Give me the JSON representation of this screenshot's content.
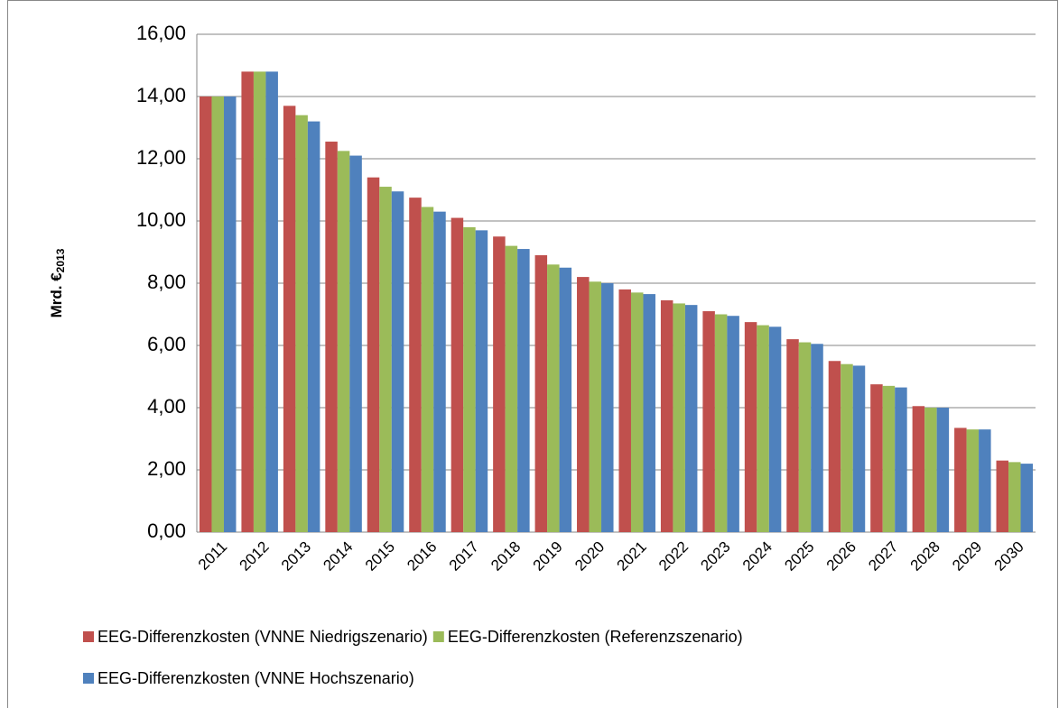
{
  "chart_data": {
    "type": "bar",
    "y_label": "Mrd. €",
    "y_label_sub": "2013",
    "categories": [
      "2011",
      "2012",
      "2013",
      "2014",
      "2015",
      "2016",
      "2017",
      "2018",
      "2019",
      "2020",
      "2021",
      "2022",
      "2023",
      "2024",
      "2025",
      "2026",
      "2027",
      "2028",
      "2029",
      "2030"
    ],
    "series": [
      {
        "name": "EEG-Differenzkosten (VNNE Niedrigszenario)",
        "color": "#c0504d",
        "values": [
          14.0,
          14.8,
          13.7,
          12.55,
          11.4,
          10.75,
          10.1,
          9.5,
          8.9,
          8.2,
          7.8,
          7.45,
          7.1,
          6.75,
          6.2,
          5.5,
          4.75,
          4.05,
          3.35,
          2.3
        ]
      },
      {
        "name": "EEG-Differenzkosten (Referenzszenario)",
        "color": "#9bbb59",
        "values": [
          14.0,
          14.8,
          13.4,
          12.25,
          11.1,
          10.45,
          9.8,
          9.2,
          8.6,
          8.05,
          7.7,
          7.35,
          7.0,
          6.65,
          6.1,
          5.4,
          4.7,
          4.0,
          3.3,
          2.25
        ]
      },
      {
        "name": "EEG-Differenzkosten (VNNE Hochszenario)",
        "color": "#4f81bd",
        "values": [
          14.0,
          14.8,
          13.2,
          12.1,
          10.95,
          10.3,
          9.7,
          9.1,
          8.5,
          8.0,
          7.65,
          7.3,
          6.95,
          6.6,
          6.05,
          5.35,
          4.65,
          4.0,
          3.3,
          2.2
        ]
      }
    ],
    "ylim": [
      0,
      16
    ],
    "yticks": [
      {
        "value": 0,
        "label": "0,00"
      },
      {
        "value": 2,
        "label": "2,00"
      },
      {
        "value": 4,
        "label": "4,00"
      },
      {
        "value": 6,
        "label": "6,00"
      },
      {
        "value": 8,
        "label": "8,00"
      },
      {
        "value": 10,
        "label": "10,00"
      },
      {
        "value": 12,
        "label": "12,00"
      },
      {
        "value": 14,
        "label": "14,00"
      },
      {
        "value": 16,
        "label": "16,00"
      }
    ],
    "grid": true
  }
}
